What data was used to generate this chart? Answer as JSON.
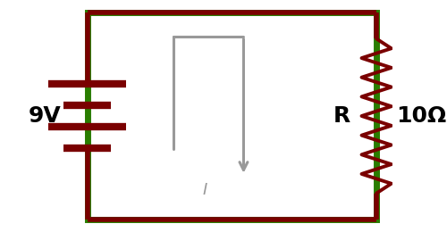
{
  "bg_color": "#ffffff",
  "border_color": "#2a7d00",
  "border_lw": 5,
  "wire_color": "#7a0000",
  "wire_lw": 4,
  "resistor_color": "#7a0000",
  "resistor_lw": 2.8,
  "current_color": "#999999",
  "current_lw": 2.2,
  "battery_color": "#7a0000",
  "battery_lw": 6,
  "label_9V": "9V",
  "label_R": "R",
  "label_val": "10Ω",
  "label_I": "I",
  "fig_width": 5.0,
  "fig_height": 2.6,
  "dpi": 100,
  "xlim": [
    0,
    10
  ],
  "ylim": [
    0,
    5.2
  ]
}
